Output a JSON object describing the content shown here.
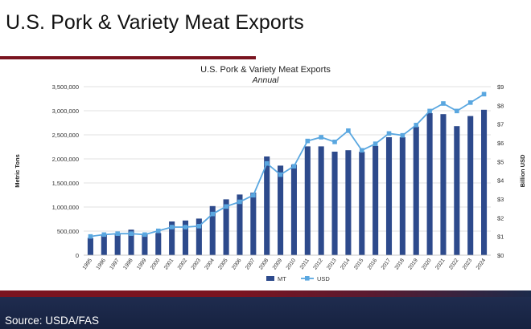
{
  "slide": {
    "title": "U.S. Pork & Variety Meat Exports",
    "source": "Source: USDA/FAS"
  },
  "colors": {
    "accent_rule": "#7a1420",
    "footer": "#1f2c4f",
    "bar": "#2d4a8c",
    "line": "#5aa7e0"
  },
  "chart_data": {
    "type": "bar",
    "title": "U.S. Pork & Variety Meat Exports",
    "subtitle": "Annual",
    "ylabel": "Metric Tons",
    "y2label": "Billion USD",
    "ylim": [
      0,
      3500000
    ],
    "y2lim": [
      0,
      9
    ],
    "yticks": [
      "0",
      "500,000",
      "1,000,000",
      "1,500,000",
      "2,000,000",
      "2,500,000",
      "3,000,000",
      "3,500,000"
    ],
    "y2ticks": [
      "$0",
      "$1",
      "$2",
      "$3",
      "$4",
      "$5",
      "$6",
      "$7",
      "$8",
      "$9"
    ],
    "grid": true,
    "legend": "bottom-center",
    "categories": [
      "1995",
      "1996",
      "1997",
      "1998",
      "1999",
      "2000",
      "2001",
      "2002",
      "2003",
      "2004",
      "2005",
      "2006",
      "2007",
      "2008",
      "2009",
      "2010",
      "2011",
      "2012",
      "2013",
      "2014",
      "2015",
      "2016",
      "2017",
      "2018",
      "2019",
      "2020",
      "2021",
      "2022",
      "2023",
      "2024"
    ],
    "series": [
      {
        "name": "MT",
        "kind": "bar",
        "axis": "left",
        "values": [
          360000,
          420000,
          450000,
          530000,
          440000,
          460000,
          700000,
          720000,
          760000,
          1020000,
          1160000,
          1260000,
          1300000,
          2050000,
          1860000,
          1880000,
          2260000,
          2260000,
          2150000,
          2180000,
          2150000,
          2270000,
          2450000,
          2450000,
          2670000,
          2950000,
          2930000,
          2680000,
          2890000,
          3020000
        ]
      },
      {
        "name": "USD",
        "kind": "line",
        "axis": "right",
        "values": [
          1.0,
          1.1,
          1.15,
          1.15,
          1.1,
          1.3,
          1.5,
          1.5,
          1.55,
          2.2,
          2.6,
          2.85,
          3.2,
          4.9,
          4.3,
          4.75,
          6.1,
          6.3,
          6.05,
          6.65,
          5.6,
          5.95,
          6.5,
          6.4,
          6.95,
          7.7,
          8.1,
          7.7,
          8.15,
          8.6
        ]
      }
    ]
  }
}
